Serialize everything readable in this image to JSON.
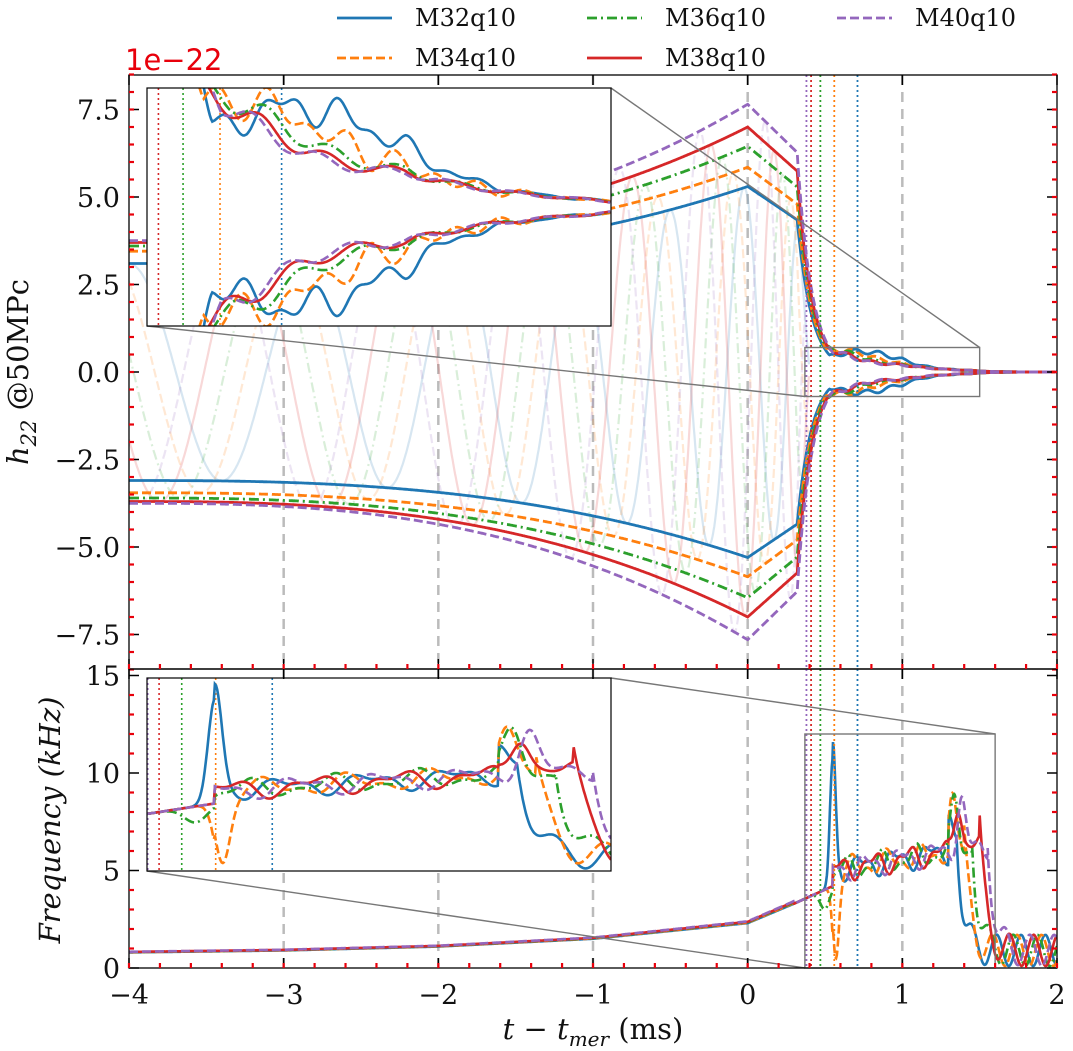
{
  "chart_data": {
    "type": "line",
    "title": "",
    "colors": {
      "M32q10": "#1f77b4",
      "M34q10": "#ff7f0e",
      "M36q10": "#2ca02c",
      "M38q10": "#d62728",
      "M40q10": "#9467bd",
      "multiplier": "#e8000b",
      "grid_dash": "#bbbbbb"
    },
    "series": [
      {
        "name": "M32q10",
        "style": "solid",
        "merger_end_ms": 0.71,
        "peak_amp": 5.3,
        "amp_at_minus4": 3.1,
        "freq_spike_khz": 10.8
      },
      {
        "name": "M34q10",
        "style": "dashed",
        "merger_end_ms": 0.56,
        "peak_amp": 5.85,
        "amp_at_minus4": 3.45,
        "freq_spike_khz": 0
      },
      {
        "name": "M36q10",
        "style": "dashdot",
        "merger_end_ms": 0.47,
        "peak_amp": 6.45,
        "amp_at_minus4": 3.6,
        "freq_spike_khz": 0
      },
      {
        "name": "M38q10",
        "style": "solid",
        "merger_end_ms": 0.41,
        "peak_amp": 7.0,
        "amp_at_minus4": 3.7,
        "freq_spike_khz": 0
      },
      {
        "name": "M40q10",
        "style": "dashed",
        "merger_end_ms": 0.38,
        "peak_amp": 7.65,
        "amp_at_minus4": 3.75,
        "freq_spike_khz": 0
      }
    ],
    "top_panel": {
      "ylabel": "h_22 @50MPc",
      "ylabel_main": "h",
      "ylabel_sub": "22",
      "ylabel_rest": " @50MPc",
      "offset_text": "1e−22",
      "xlim": [
        -4,
        2
      ],
      "ylim": [
        -8.5,
        8.5
      ],
      "yticks": [
        -7.5,
        -5.0,
        -2.5,
        0.0,
        2.5,
        5.0,
        7.5
      ],
      "ytick_labels": [
        "−7.5",
        "−5.0",
        "−2.5",
        "0.0",
        "2.5",
        "5.0",
        "7.5"
      ]
    },
    "bottom_panel": {
      "ylabel": "Frequency (kHz)",
      "ylim": [
        0,
        15
      ],
      "yticks": [
        0,
        5,
        10,
        15
      ],
      "ytick_labels": [
        "0",
        "5",
        "10",
        "15"
      ],
      "inspiral_freq_khz": [
        [
          -4,
          0.8
        ],
        [
          -3,
          0.9
        ],
        [
          -2,
          1.1
        ],
        [
          -1,
          1.5
        ],
        [
          -0.5,
          1.9
        ],
        [
          0,
          2.3
        ],
        [
          0.3,
          3.3
        ]
      ]
    },
    "x": {
      "xlabel": "t − t_mer (ms)",
      "xlabel_main": "t − t",
      "xlabel_sub": "mer",
      "xlabel_rest": " (ms)",
      "ticks": [
        -4,
        -3,
        -2,
        -1,
        0,
        1,
        2
      ],
      "tick_labels": [
        "−4",
        "−3",
        "−2",
        "−1",
        "0",
        "1",
        "2"
      ],
      "vertical_guides_ms": [
        -3,
        -2,
        -1,
        0,
        1
      ]
    },
    "top_inset": {
      "x_range_ms": [
        0.37,
        1.5
      ],
      "y_range": [
        -0.7,
        0.7
      ]
    },
    "bottom_inset": {
      "x_range_ms": [
        0.37,
        1.6
      ],
      "y_range": [
        0,
        12
      ]
    },
    "legend": {
      "ncol": 3,
      "placement": "top-center-outside"
    }
  }
}
